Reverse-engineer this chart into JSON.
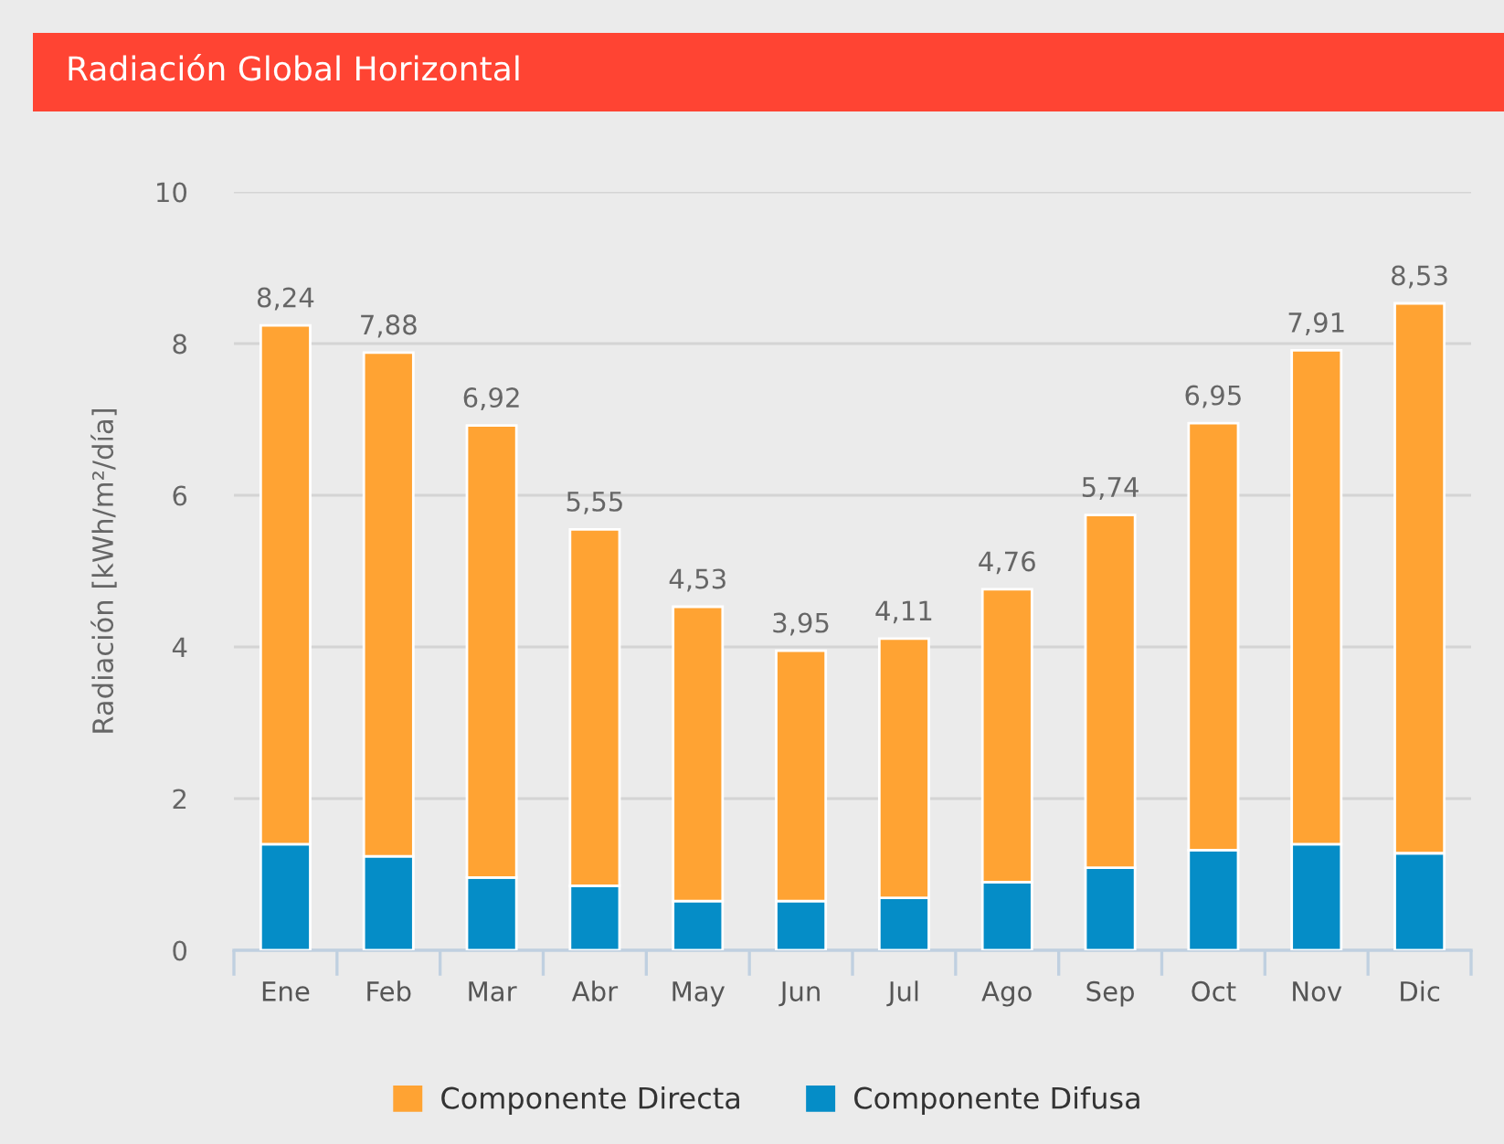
{
  "chart_data": {
    "type": "bar",
    "title": "Radiación Global Horizontal",
    "ylabel": "Radiación [kWh/m²/día]",
    "categories": [
      "Ene",
      "Feb",
      "Mar",
      "Abr",
      "May",
      "Jun",
      "Jul",
      "Ago",
      "Sep",
      "Oct",
      "Nov",
      "Dic"
    ],
    "series": [
      {
        "name": "Componente Difusa",
        "color": "#058dc7",
        "values": [
          1.4,
          1.24,
          0.96,
          0.85,
          0.65,
          0.65,
          0.69,
          0.9,
          1.09,
          1.32,
          1.4,
          1.28
        ]
      },
      {
        "name": "Componente Directa",
        "color": "#ffa333",
        "values": [
          6.84,
          6.64,
          5.96,
          4.7,
          3.88,
          3.3,
          3.42,
          3.86,
          4.65,
          5.63,
          6.51,
          7.25
        ]
      }
    ],
    "stacked": true,
    "totals": [
      "8,24",
      "7,88",
      "6,92",
      "5,55",
      "4,53",
      "3,95",
      "4,11",
      "4,76",
      "5,74",
      "6,95",
      "7,91",
      "8,53"
    ],
    "ylim": [
      0,
      10
    ],
    "yticks": [
      0,
      2,
      4,
      6,
      8,
      10
    ],
    "grid": "y",
    "legend": "bottom"
  }
}
